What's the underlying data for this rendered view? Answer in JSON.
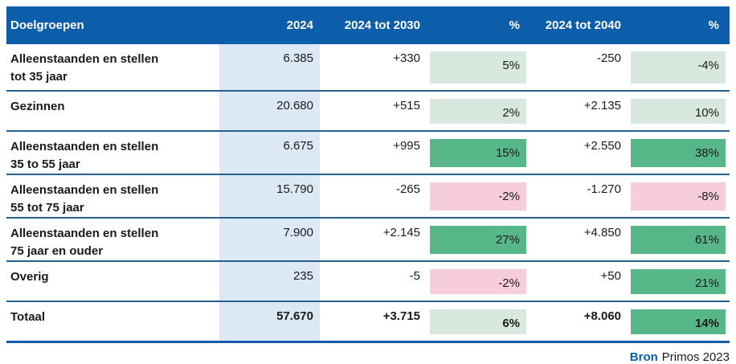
{
  "colors": {
    "header_blue": "#0c5eab",
    "light_blue": "#dce9f5",
    "pale_green": "#d9e8de",
    "strong_green": "#58b788",
    "pink": "#f6cdd8",
    "separator": "#26608f",
    "bottom_border": "#1159a6"
  },
  "table": {
    "columns": {
      "doelgroepen": "Doelgroepen",
      "y2024": "2024",
      "d2030": "2024 tot 2030",
      "p2030": "%",
      "d2040": "2024 tot 2040",
      "p2040": "%"
    },
    "rows": [
      {
        "label": [
          "Alleenstaanden en stellen",
          "tot 35 jaar"
        ],
        "v2024": "6.385",
        "d2030": "+330",
        "p2030": "5%",
        "p2030_tone": "pale_green",
        "d2040": "-250",
        "p2040": "-4%",
        "p2040_tone": "pale_green",
        "bold": false
      },
      {
        "label": [
          "Gezinnen",
          ""
        ],
        "v2024": "20.680",
        "d2030": "+515",
        "p2030": "2%",
        "p2030_tone": "pale_green",
        "d2040": "+2.135",
        "p2040": "10%",
        "p2040_tone": "pale_green",
        "bold": false
      },
      {
        "label": [
          "Alleenstaanden en stellen",
          "35 to 55 jaar"
        ],
        "v2024": "6.675",
        "d2030": "+995",
        "p2030": "15%",
        "p2030_tone": "strong_green",
        "d2040": "+2.550",
        "p2040": "38%",
        "p2040_tone": "strong_green",
        "bold": false
      },
      {
        "label": [
          "Alleenstaanden en stellen",
          "55 tot 75 jaar"
        ],
        "v2024": "15.790",
        "d2030": "-265",
        "p2030": "-2%",
        "p2030_tone": "pink",
        "d2040": "-1.270",
        "p2040": "-8%",
        "p2040_tone": "pink",
        "bold": false
      },
      {
        "label": [
          "Alleenstaanden en stellen",
          "75 jaar en ouder"
        ],
        "v2024": "7.900",
        "d2030": "+2.145",
        "p2030": "27%",
        "p2030_tone": "strong_green",
        "d2040": "+4.850",
        "p2040": "61%",
        "p2040_tone": "strong_green",
        "bold": false
      },
      {
        "label": [
          "Overig",
          ""
        ],
        "v2024": "235",
        "d2030": "-5",
        "p2030": "-2%",
        "p2030_tone": "pink",
        "d2040": "+50",
        "p2040": "21%",
        "p2040_tone": "strong_green",
        "bold": false
      },
      {
        "label": [
          "Totaal",
          ""
        ],
        "v2024": "57.670",
        "d2030": "+3.715",
        "p2030": "6%",
        "p2030_tone": "pale_green",
        "d2040": "+8.060",
        "p2040": "14%",
        "p2040_tone": "strong_green",
        "bold": true
      }
    ]
  },
  "footer": {
    "source_label": "Bron",
    "source_value": "Primos 2023"
  }
}
